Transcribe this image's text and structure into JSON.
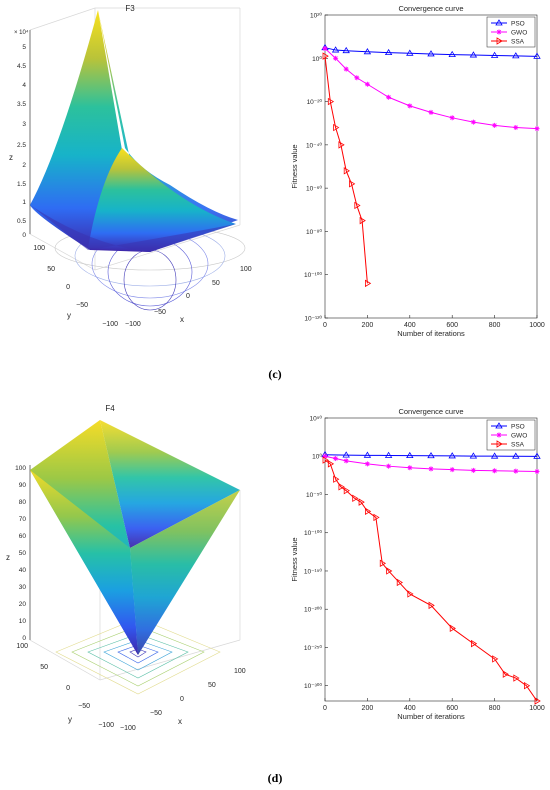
{
  "panels": [
    {
      "label": "(c)",
      "surface": {
        "title": "F3",
        "xlabel": "x",
        "ylabel": "y",
        "zlabel": "z",
        "z_ticks": [
          "0",
          "0.5",
          "1",
          "1.5",
          "2",
          "2.5",
          "3",
          "3.5",
          "4",
          "4.5",
          "5"
        ],
        "z_exponent": "× 10⁴",
        "x_ticks": [
          "−100",
          "−50",
          "0",
          "50",
          "100"
        ],
        "y_ticks": [
          "100",
          "50",
          "0",
          "−50",
          "−100"
        ]
      }
    },
    {
      "label": "(d)",
      "surface": {
        "title": "F4",
        "xlabel": "x",
        "ylabel": "y",
        "zlabel": "z",
        "z_ticks": [
          "0",
          "10",
          "20",
          "30",
          "40",
          "50",
          "60",
          "70",
          "80",
          "90",
          "100"
        ],
        "x_ticks": [
          "−100",
          "−50",
          "0",
          "50",
          "100"
        ],
        "y_ticks": [
          "100",
          "50",
          "0",
          "−50",
          "−100"
        ]
      }
    }
  ],
  "chart_data": [
    {
      "type": "line",
      "title": "Convergence curve",
      "xlabel": "Number of iterations",
      "ylabel": "Fitness value",
      "xlim": [
        0,
        1000
      ],
      "ylim_log10": [
        -120,
        20
      ],
      "y_scale": "log",
      "x_ticks": [
        0,
        200,
        400,
        600,
        800,
        1000
      ],
      "y_ticks_exp": [
        20,
        0,
        -20,
        -40,
        -60,
        -80,
        -100,
        -120
      ],
      "legend_position": "top-right",
      "series": [
        {
          "name": "PSO",
          "color": "#0000ff",
          "marker": "triangle-up",
          "x": [
            0,
            50,
            100,
            200,
            300,
            400,
            500,
            600,
            700,
            800,
            900,
            1000
          ],
          "log10_y": [
            4.9,
            3.8,
            3.5,
            3.0,
            2.6,
            2.3,
            2.0,
            1.7,
            1.5,
            1.3,
            1.1,
            0.9
          ]
        },
        {
          "name": "GWO",
          "color": "#ff00ff",
          "marker": "asterisk",
          "x": [
            0,
            50,
            100,
            150,
            200,
            300,
            400,
            500,
            600,
            700,
            800,
            900,
            1000
          ],
          "log10_y": [
            4.5,
            0,
            -5,
            -9,
            -12,
            -18,
            -22,
            -25,
            -27.5,
            -29.5,
            -31,
            -32,
            -32.5
          ]
        },
        {
          "name": "SSA",
          "color": "#ff0000",
          "marker": "triangle-right",
          "x": [
            0,
            25,
            50,
            75,
            100,
            125,
            150,
            175,
            200
          ],
          "log10_y": [
            1,
            -20,
            -32,
            -40,
            -52,
            -58,
            -68,
            -75,
            -104
          ]
        }
      ]
    },
    {
      "type": "line",
      "title": "Convergence curve",
      "xlabel": "Number of iterations",
      "ylabel": "Fitness value",
      "xlim": [
        0,
        1000
      ],
      "ylim_log10": [
        -320,
        50
      ],
      "y_scale": "log",
      "x_ticks": [
        0,
        200,
        400,
        600,
        800,
        1000
      ],
      "y_ticks_exp": [
        50,
        0,
        -50,
        -100,
        -150,
        -200,
        -250,
        -300
      ],
      "legend_position": "top-right",
      "series": [
        {
          "name": "PSO",
          "color": "#0000ff",
          "marker": "triangle-up",
          "x": [
            0,
            100,
            200,
            300,
            400,
            500,
            600,
            700,
            800,
            900,
            1000
          ],
          "log10_y": [
            2,
            1.5,
            1.2,
            1.0,
            0.8,
            0.6,
            0.4,
            0.2,
            0.1,
            0,
            -0.2
          ]
        },
        {
          "name": "GWO",
          "color": "#ff00ff",
          "marker": "asterisk",
          "x": [
            0,
            50,
            100,
            200,
            300,
            400,
            500,
            600,
            700,
            800,
            900,
            1000
          ],
          "log10_y": [
            0,
            -3,
            -6,
            -10,
            -13,
            -15,
            -16.5,
            -17.5,
            -18.5,
            -19,
            -19.5,
            -20
          ]
        },
        {
          "name": "SSA",
          "color": "#ff0000",
          "marker": "triangle-right",
          "x": [
            0,
            25,
            50,
            75,
            100,
            140,
            170,
            200,
            240,
            270,
            300,
            350,
            400,
            500,
            600,
            700,
            800,
            850,
            900,
            950,
            1000
          ],
          "log10_y": [
            -5,
            -10,
            -30,
            -40,
            -45,
            -55,
            -60,
            -72,
            -80,
            -140,
            -150,
            -165,
            -180,
            -195,
            -225,
            -245,
            -265,
            -285,
            -290,
            -300,
            -320
          ]
        }
      ]
    }
  ]
}
